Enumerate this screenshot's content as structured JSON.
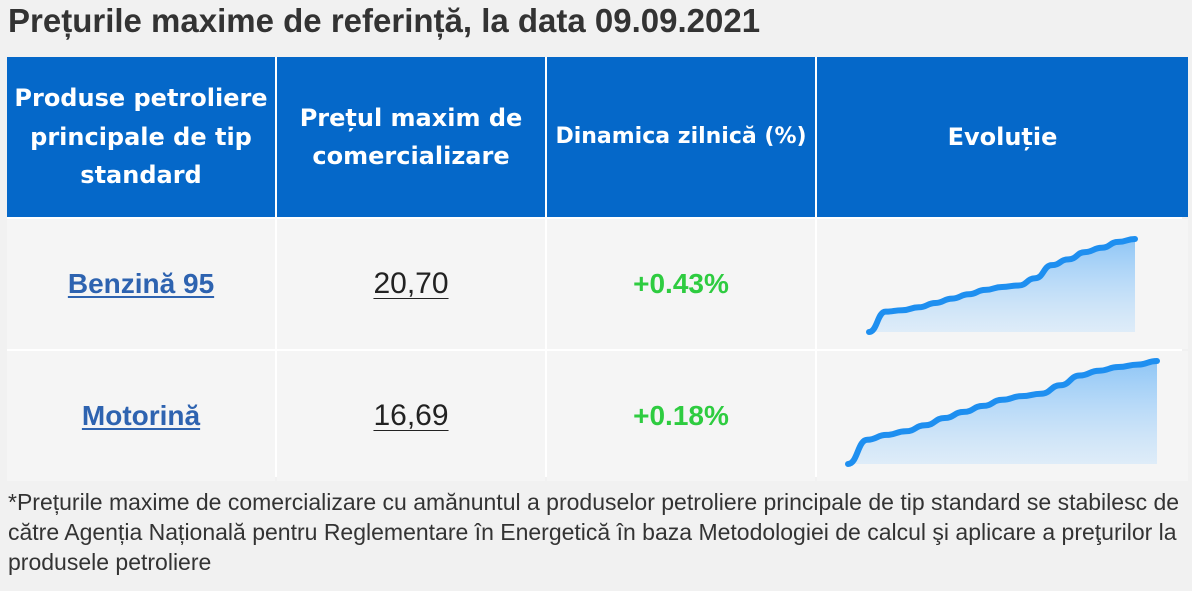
{
  "page": {
    "title": "Prețurile maxime de referință, la data 09.09.2021"
  },
  "table": {
    "headers": {
      "product": "Produse petroliere principale de tip standard",
      "price": "Prețul maxim de comercializare",
      "dynamics": "Dinamica zilnică (%)",
      "evolution": "Evoluție"
    },
    "rows": [
      {
        "product": "Benzină 95",
        "price": "20,70",
        "change": "+0.43%",
        "trend": [
          0,
          14,
          15,
          17,
          20,
          23,
          26,
          29,
          31,
          32,
          37,
          46,
          50,
          55,
          58,
          62,
          64
        ]
      },
      {
        "product": "Motorină",
        "price": "16,69",
        "change": "+0.18%",
        "trend": [
          0,
          20,
          24,
          27,
          32,
          38,
          43,
          48,
          53,
          56,
          58,
          65,
          73,
          77,
          80,
          82,
          85
        ]
      }
    ]
  },
  "colors": {
    "header_bg": "#0568c9",
    "link": "#2e63b0",
    "positive": "#2ecc40",
    "spark_line": "#1e8ff0",
    "spark_fill": "#cfe6fb"
  },
  "footnote": "*Prețurile maxime de comercializare cu amănuntul a produselor petroliere principale de tip standard se stabilesc de către Agenția Națională pentru Reglementare în Energetică în baza Metodologiei de calcul şi aplicare a preţurilor la produsele petroliere"
}
